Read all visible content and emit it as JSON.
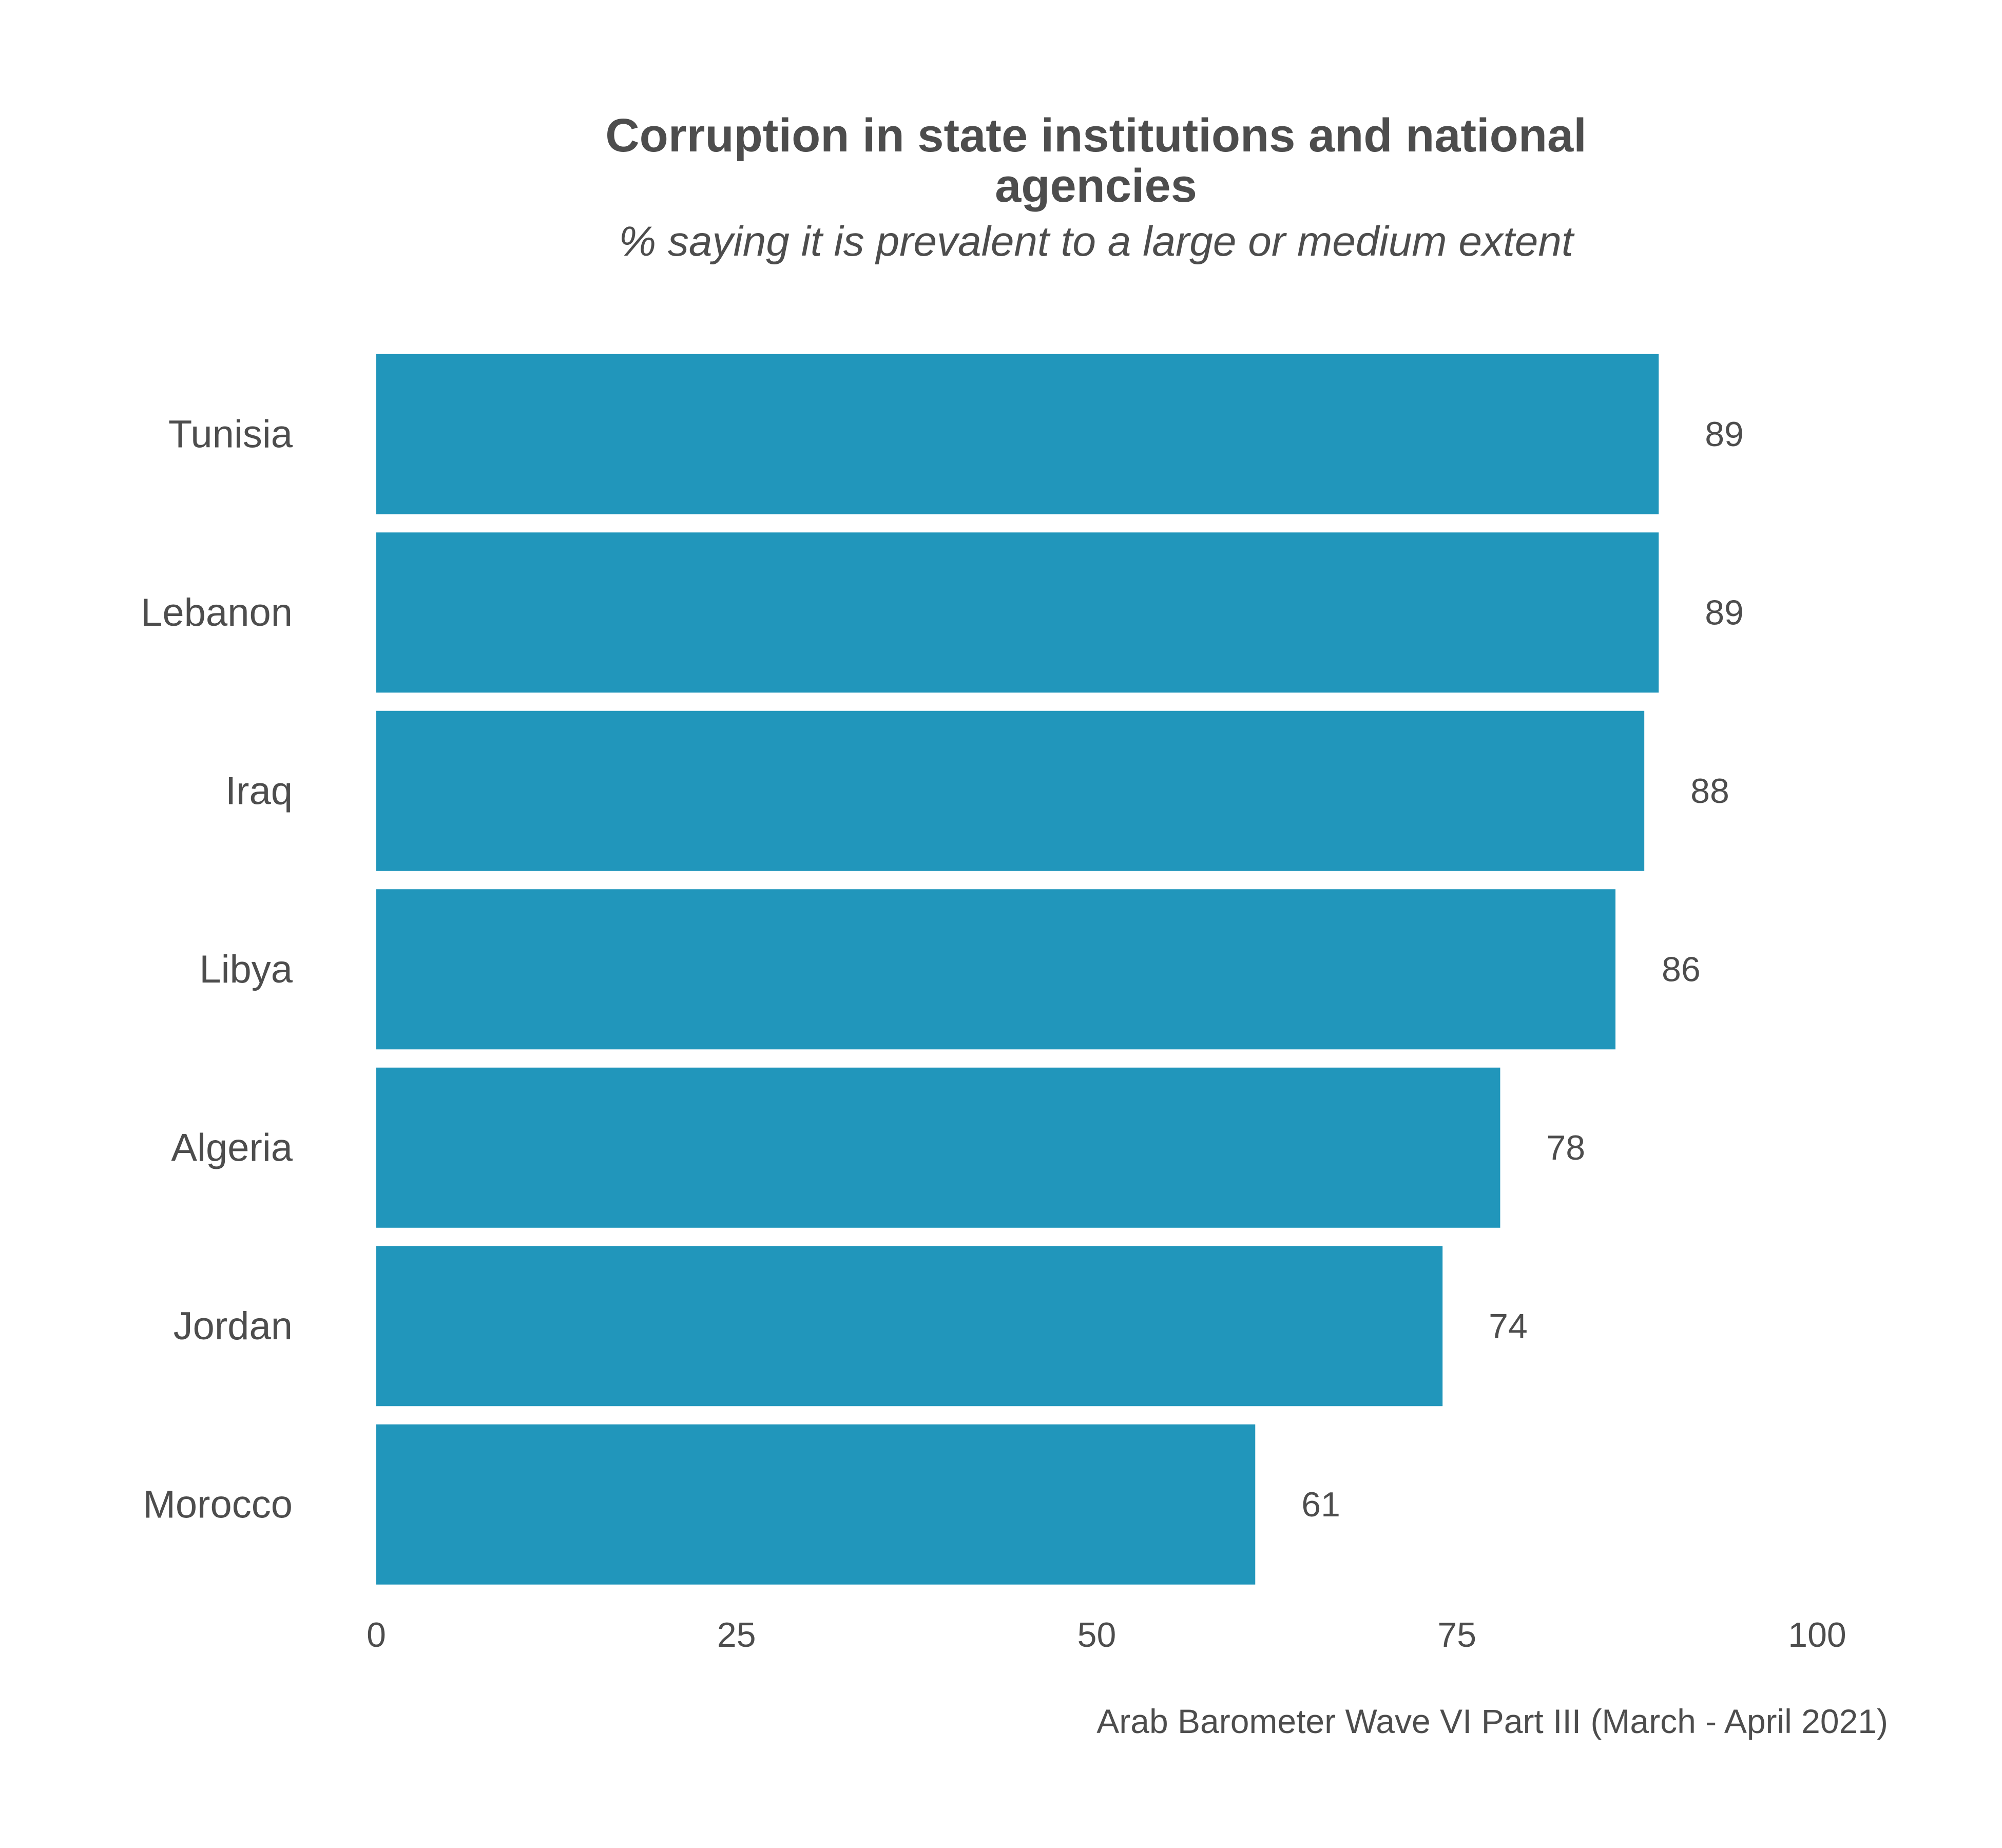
{
  "chart_data": {
    "type": "bar",
    "orientation": "horizontal",
    "title": "Corruption in state institutions and national agencies",
    "subtitle": "% saying it is prevalent to a large or medium extent",
    "caption": "Arab Barometer Wave VI Part III (March - April 2021)",
    "categories": [
      "Tunisia",
      "Lebanon",
      "Iraq",
      "Libya",
      "Algeria",
      "Jordan",
      "Morocco"
    ],
    "values": [
      89,
      89,
      88,
      86,
      78,
      74,
      61
    ],
    "value_labels": [
      "89",
      "89",
      "88",
      "86",
      "78",
      "74",
      "61"
    ],
    "xlim": [
      0,
      100
    ],
    "x_ticks": [
      0,
      25,
      50,
      75,
      100
    ],
    "x_tick_labels": [
      "0",
      "25",
      "50",
      "75",
      "100"
    ],
    "xlabel": "",
    "ylabel": "",
    "grid": false,
    "legend": "none",
    "bar_color": "#2196bb"
  }
}
